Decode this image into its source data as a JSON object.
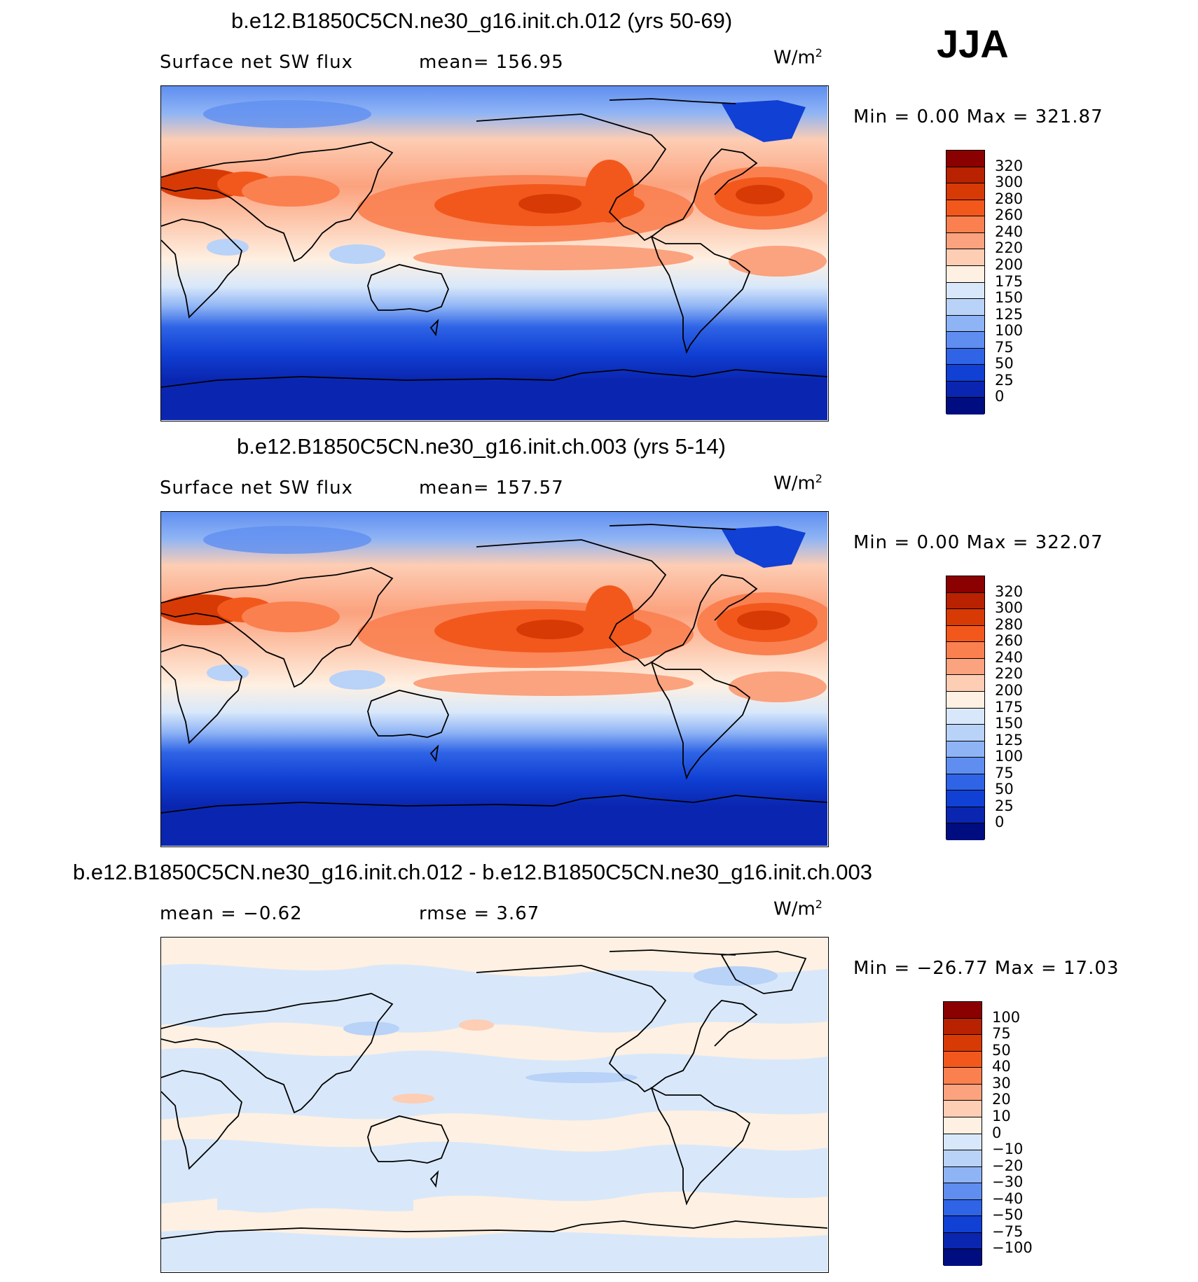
{
  "season": "JJA",
  "units_base": "W/m",
  "units_exp": "2",
  "panels": [
    {
      "id": "panel1",
      "title": "b.e12.B1850C5CN.ne30_g16.init.ch.012 (yrs 50-69)",
      "variable": "Surface net SW flux",
      "stat_text": "mean=  156.95",
      "minmax_text": "Min  =     0.00  Max  =  321.87",
      "min": 0.0,
      "max": 321.87,
      "mean": 156.95
    },
    {
      "id": "panel2",
      "title": "b.e12.B1850C5CN.ne30_g16.init.ch.003 (yrs 5-14)",
      "variable": "Surface net SW flux",
      "stat_text": "mean=  157.57",
      "minmax_text": "Min  =     0.00  Max  =  322.07",
      "min": 0.0,
      "max": 322.07,
      "mean": 157.57
    },
    {
      "id": "panel3",
      "title": "b.e12.B1850C5CN.ne30_g16.init.ch.012 - b.e12.B1850C5CN.ne30_g16.init.ch.003",
      "mean_text": "mean  =    −0.62",
      "rmse_text": "rmse  =     3.67",
      "minmax_text": "Min  = −26.77  Max  =    17.03",
      "min": -26.77,
      "max": 17.03,
      "mean": -0.62,
      "rmse": 3.67
    }
  ],
  "colorbar_abs": {
    "labels": [
      "320",
      "300",
      "280",
      "260",
      "240",
      "220",
      "200",
      "175",
      "150",
      "125",
      "100",
      "75",
      "50",
      "25",
      "0"
    ],
    "colors": [
      "#8b0000",
      "#b82200",
      "#d83a06",
      "#f2581c",
      "#fa8050",
      "#fba27e",
      "#fdcdb4",
      "#fef0e2",
      "#d8e8fa",
      "#b8d2f8",
      "#8fb4f5",
      "#5f8ef0",
      "#2f64e6",
      "#1040d4",
      "#0a26b0",
      "#000d80"
    ]
  },
  "colorbar_diff": {
    "labels": [
      "100",
      "75",
      "50",
      "40",
      "30",
      "20",
      "10",
      "0",
      "−10",
      "−20",
      "−30",
      "−40",
      "−50",
      "−75",
      "−100"
    ],
    "colors": [
      "#8b0000",
      "#b82200",
      "#d83a06",
      "#f2581c",
      "#fa8050",
      "#fba27e",
      "#fdcdb4",
      "#fef0e2",
      "#d8e8fa",
      "#b8d2f8",
      "#8fb4f5",
      "#5f8ef0",
      "#2f64e6",
      "#1040d4",
      "#0a26b0",
      "#000d80"
    ]
  }
}
